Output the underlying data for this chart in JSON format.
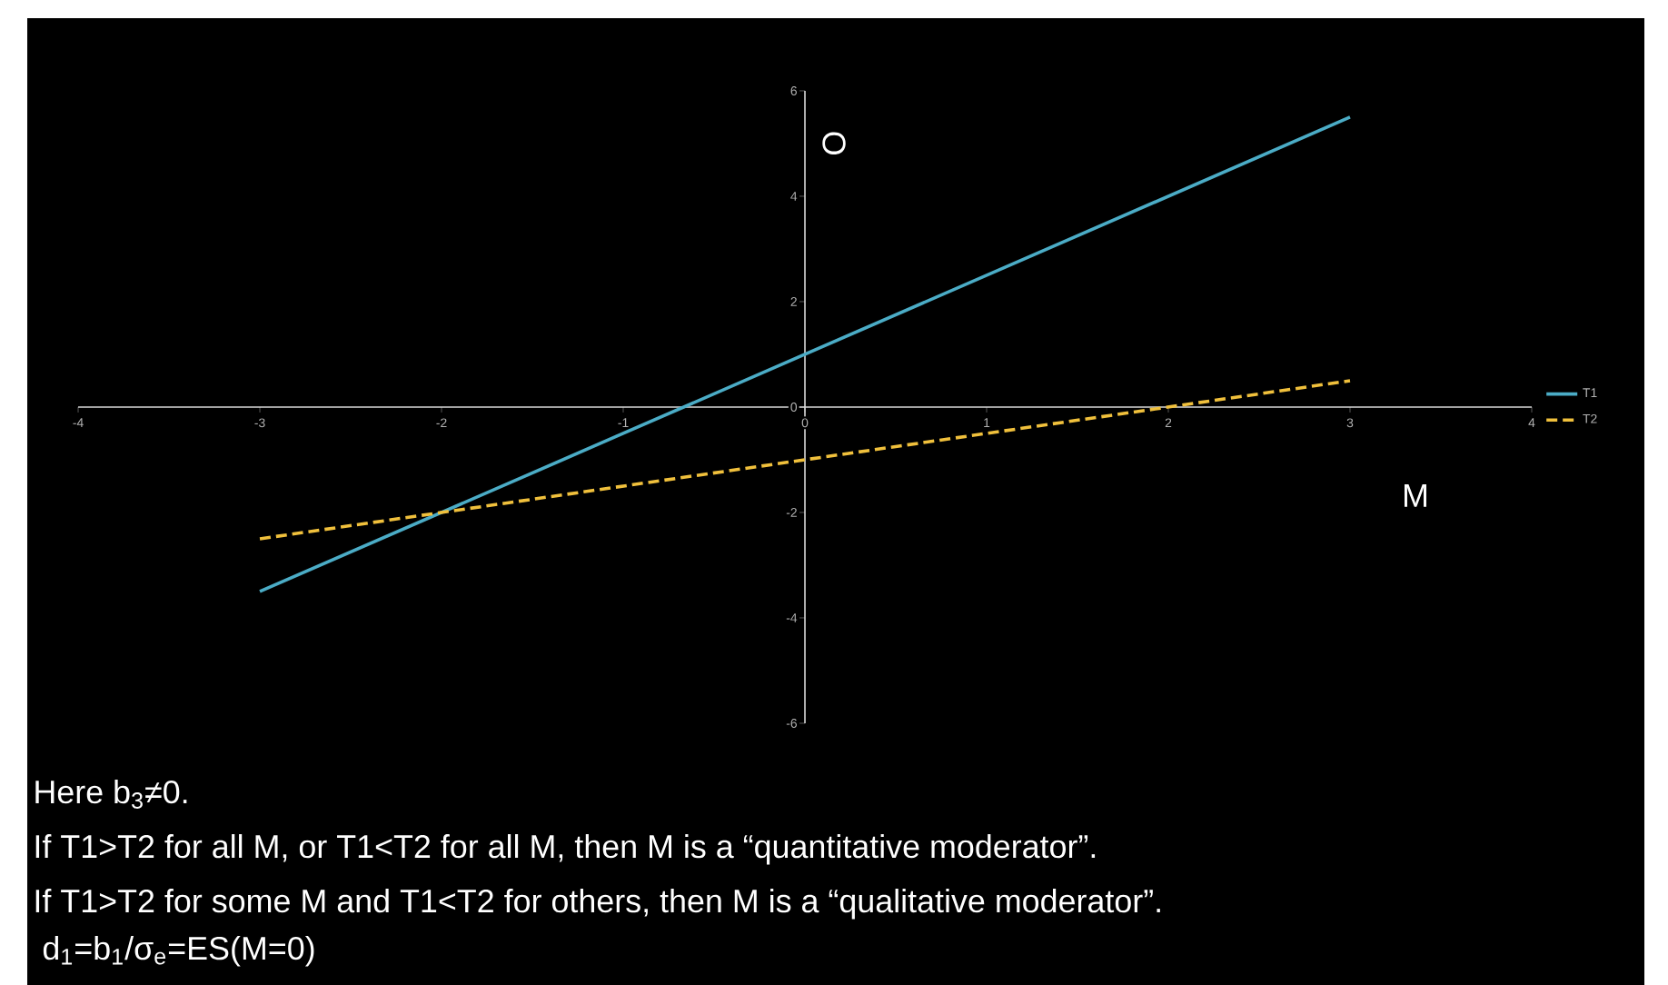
{
  "chart_data": {
    "type": "line",
    "xlabel": "M",
    "ylabel": "O",
    "x": [
      -3,
      -2,
      -1,
      0,
      1,
      2,
      3
    ],
    "series": [
      {
        "name": "T1",
        "color": "#4bacc6",
        "line_style": "solid",
        "values": [
          -3.5,
          -2,
          -0.5,
          1,
          2.5,
          4,
          5.5
        ]
      },
      {
        "name": "T2",
        "color": "#f0c03c",
        "line_style": "dashed",
        "values": [
          -2.5,
          -2,
          -1.5,
          -1,
          -0.5,
          0,
          0.5
        ]
      }
    ],
    "xlim": [
      -4,
      4
    ],
    "ylim": [
      -6,
      6
    ],
    "xticks": [
      -4,
      -3,
      -2,
      -1,
      0,
      1,
      2,
      3,
      4
    ],
    "yticks": [
      -6,
      -4,
      -2,
      0,
      2,
      4,
      6
    ],
    "grid": false,
    "legend": "right",
    "marker": "none",
    "annotations": [
      "Here b$_{3}$≠0.",
      "If T1>T2 for all M, or T1<T2 for all M, then M is a “quantitative moderator”.",
      "If T1>T2 for some M and T1<T2 for others, then M is a “qualitative moderator”.",
      " d$_{1}$=b$_{1}$/σ$_{e}$=ES(M=0)"
    ]
  }
}
